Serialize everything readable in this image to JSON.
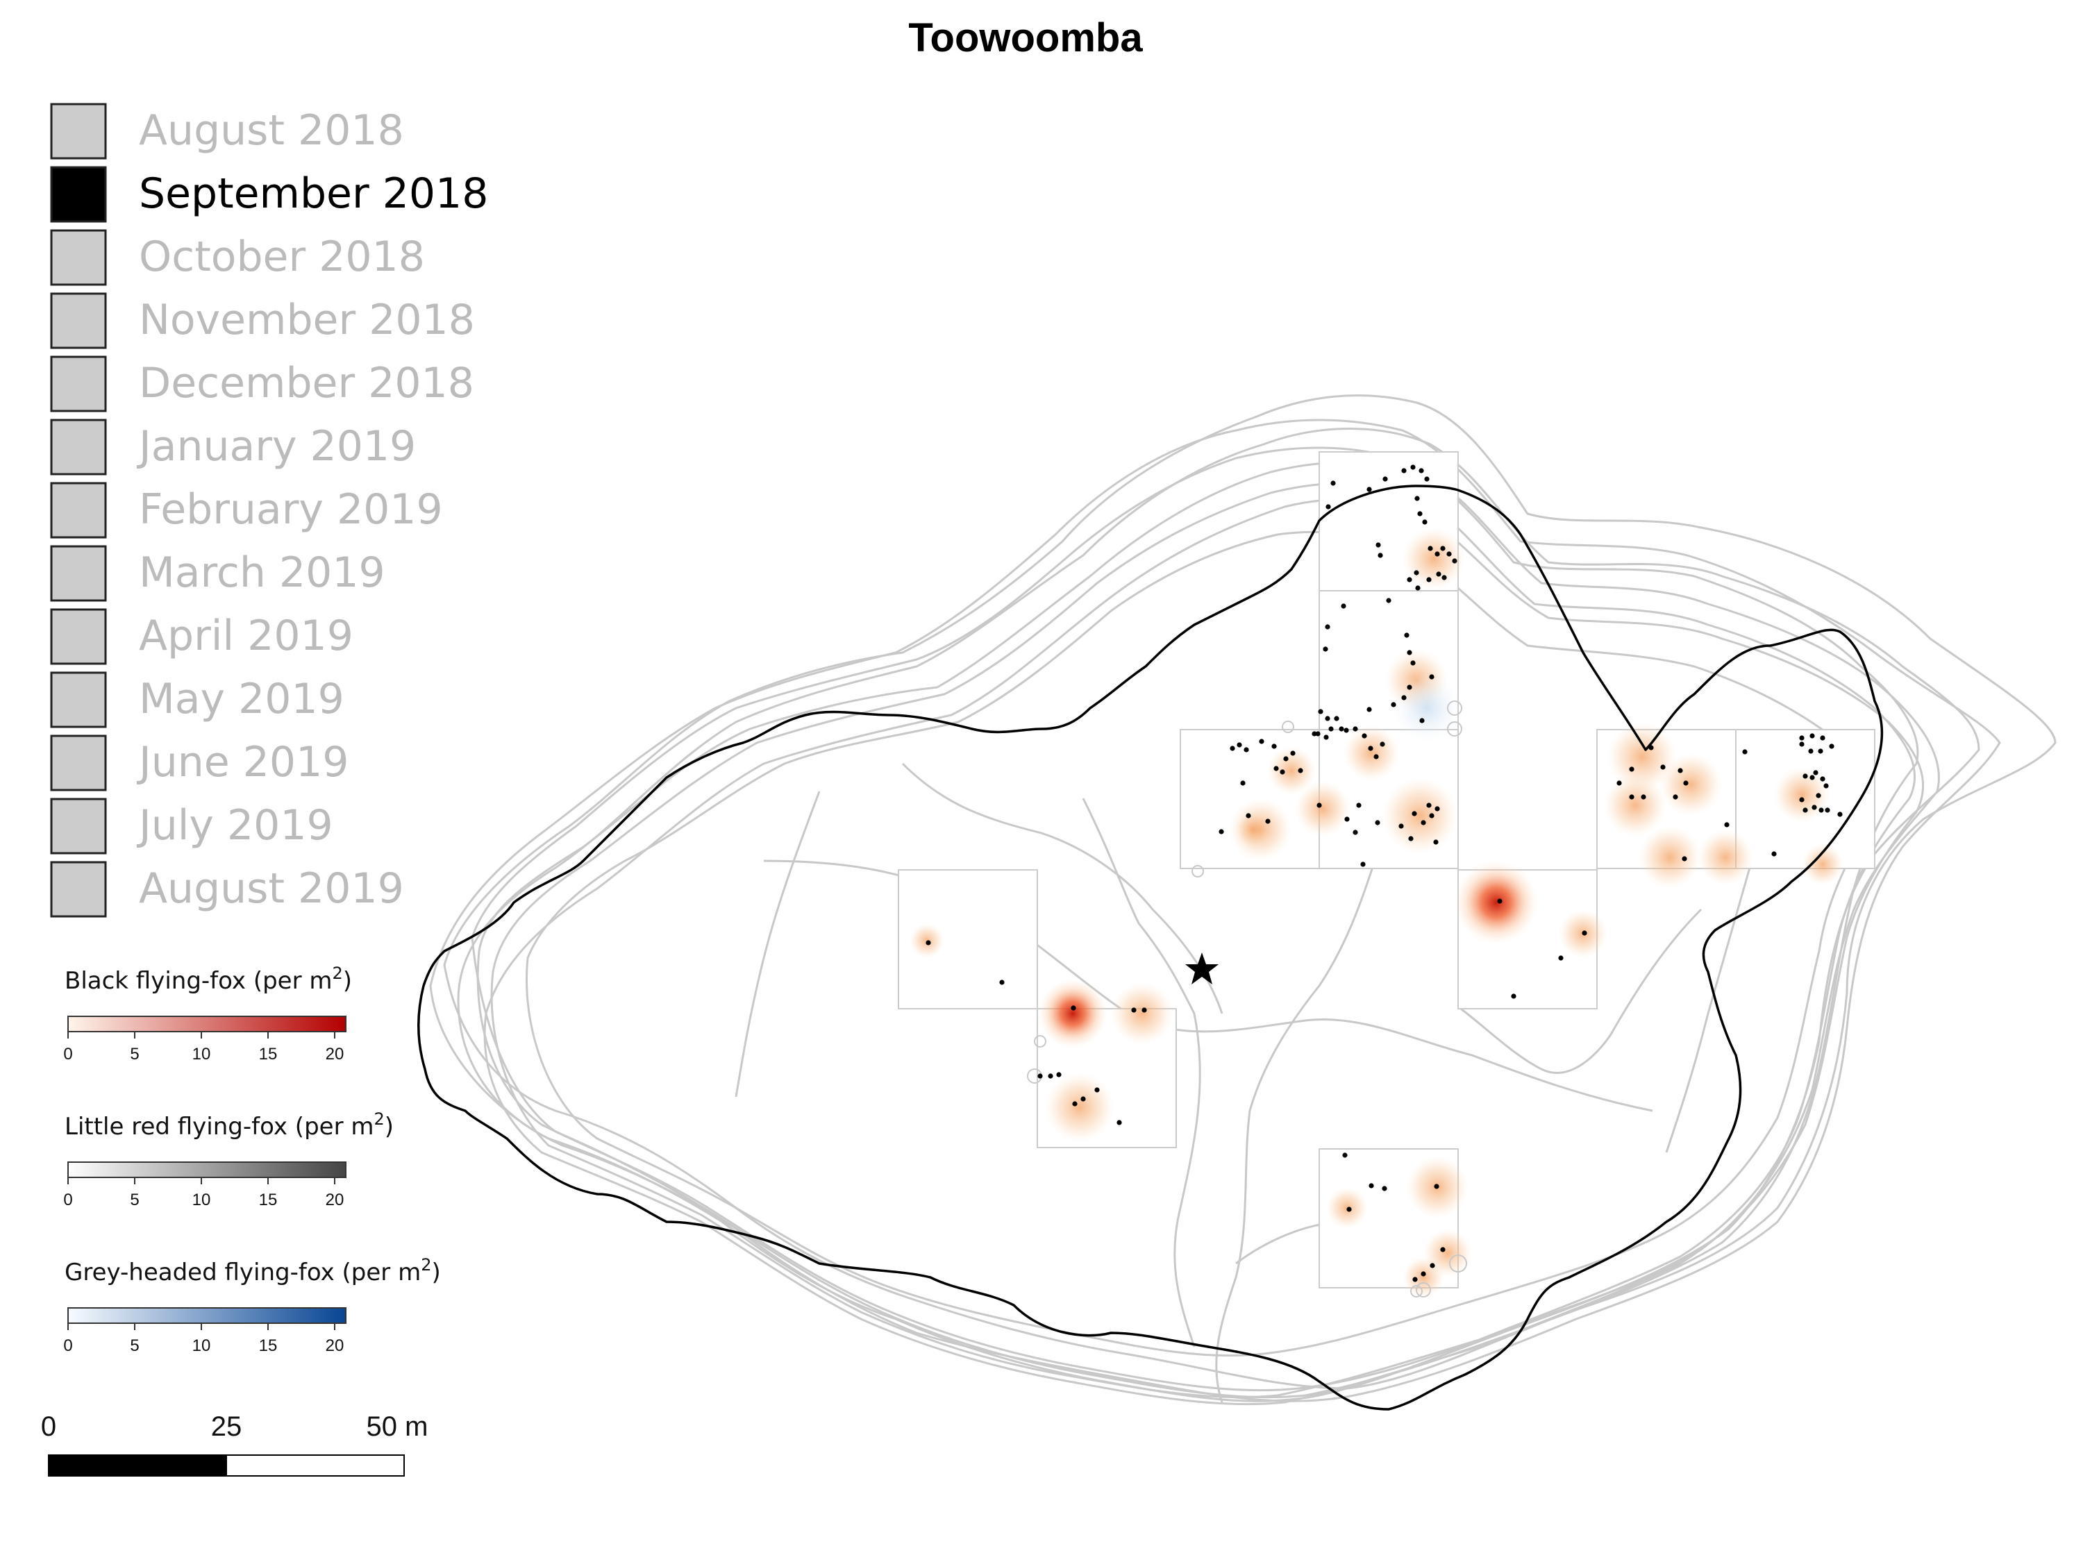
{
  "title": "Toowoomba",
  "month_legend": {
    "items": [
      {
        "label": "August 2018",
        "active": false
      },
      {
        "label": "September 2018",
        "active": true
      },
      {
        "label": "October 2018",
        "active": false
      },
      {
        "label": "November 2018",
        "active": false
      },
      {
        "label": "December 2018",
        "active": false
      },
      {
        "label": "January 2019",
        "active": false
      },
      {
        "label": "February 2019",
        "active": false
      },
      {
        "label": "March 2019",
        "active": false
      },
      {
        "label": "April 2019",
        "active": false
      },
      {
        "label": "May 2019",
        "active": false
      },
      {
        "label": "June 2019",
        "active": false
      },
      {
        "label": "July 2019",
        "active": false
      },
      {
        "label": "August 2019",
        "active": false
      }
    ],
    "active_color": "#000000",
    "inactive_fill": "#cccccc",
    "inactive_text": "#bbbbbb"
  },
  "colorbars": [
    {
      "title": "Black flying-fox (per m",
      "sup": "2",
      "close": ")",
      "ticks": [
        "0",
        "5",
        "10",
        "15",
        "20"
      ],
      "from": "#fff5eb",
      "to": "#b30000"
    },
    {
      "title": "Little red flying-fox (per m",
      "sup": "2",
      "close": ")",
      "ticks": [
        "0",
        "5",
        "10",
        "15",
        "20"
      ],
      "from": "#ffffff",
      "to": "#444444"
    },
    {
      "title": "Grey-headed flying-fox (per m",
      "sup": "2",
      "close": ")",
      "ticks": [
        "0",
        "5",
        "10",
        "15",
        "20"
      ],
      "from": "#f7fbff",
      "to": "#084594"
    }
  ],
  "scale_bar": {
    "ticks": [
      "0",
      "25",
      "50 m"
    ]
  },
  "colors": {
    "outline": "#000000",
    "monthly_outlines": "#c8c8c8",
    "grid": "#cccccc",
    "heat": "#f07030",
    "point": "#000000"
  },
  "markers": {
    "roost_center": "star-icon"
  }
}
